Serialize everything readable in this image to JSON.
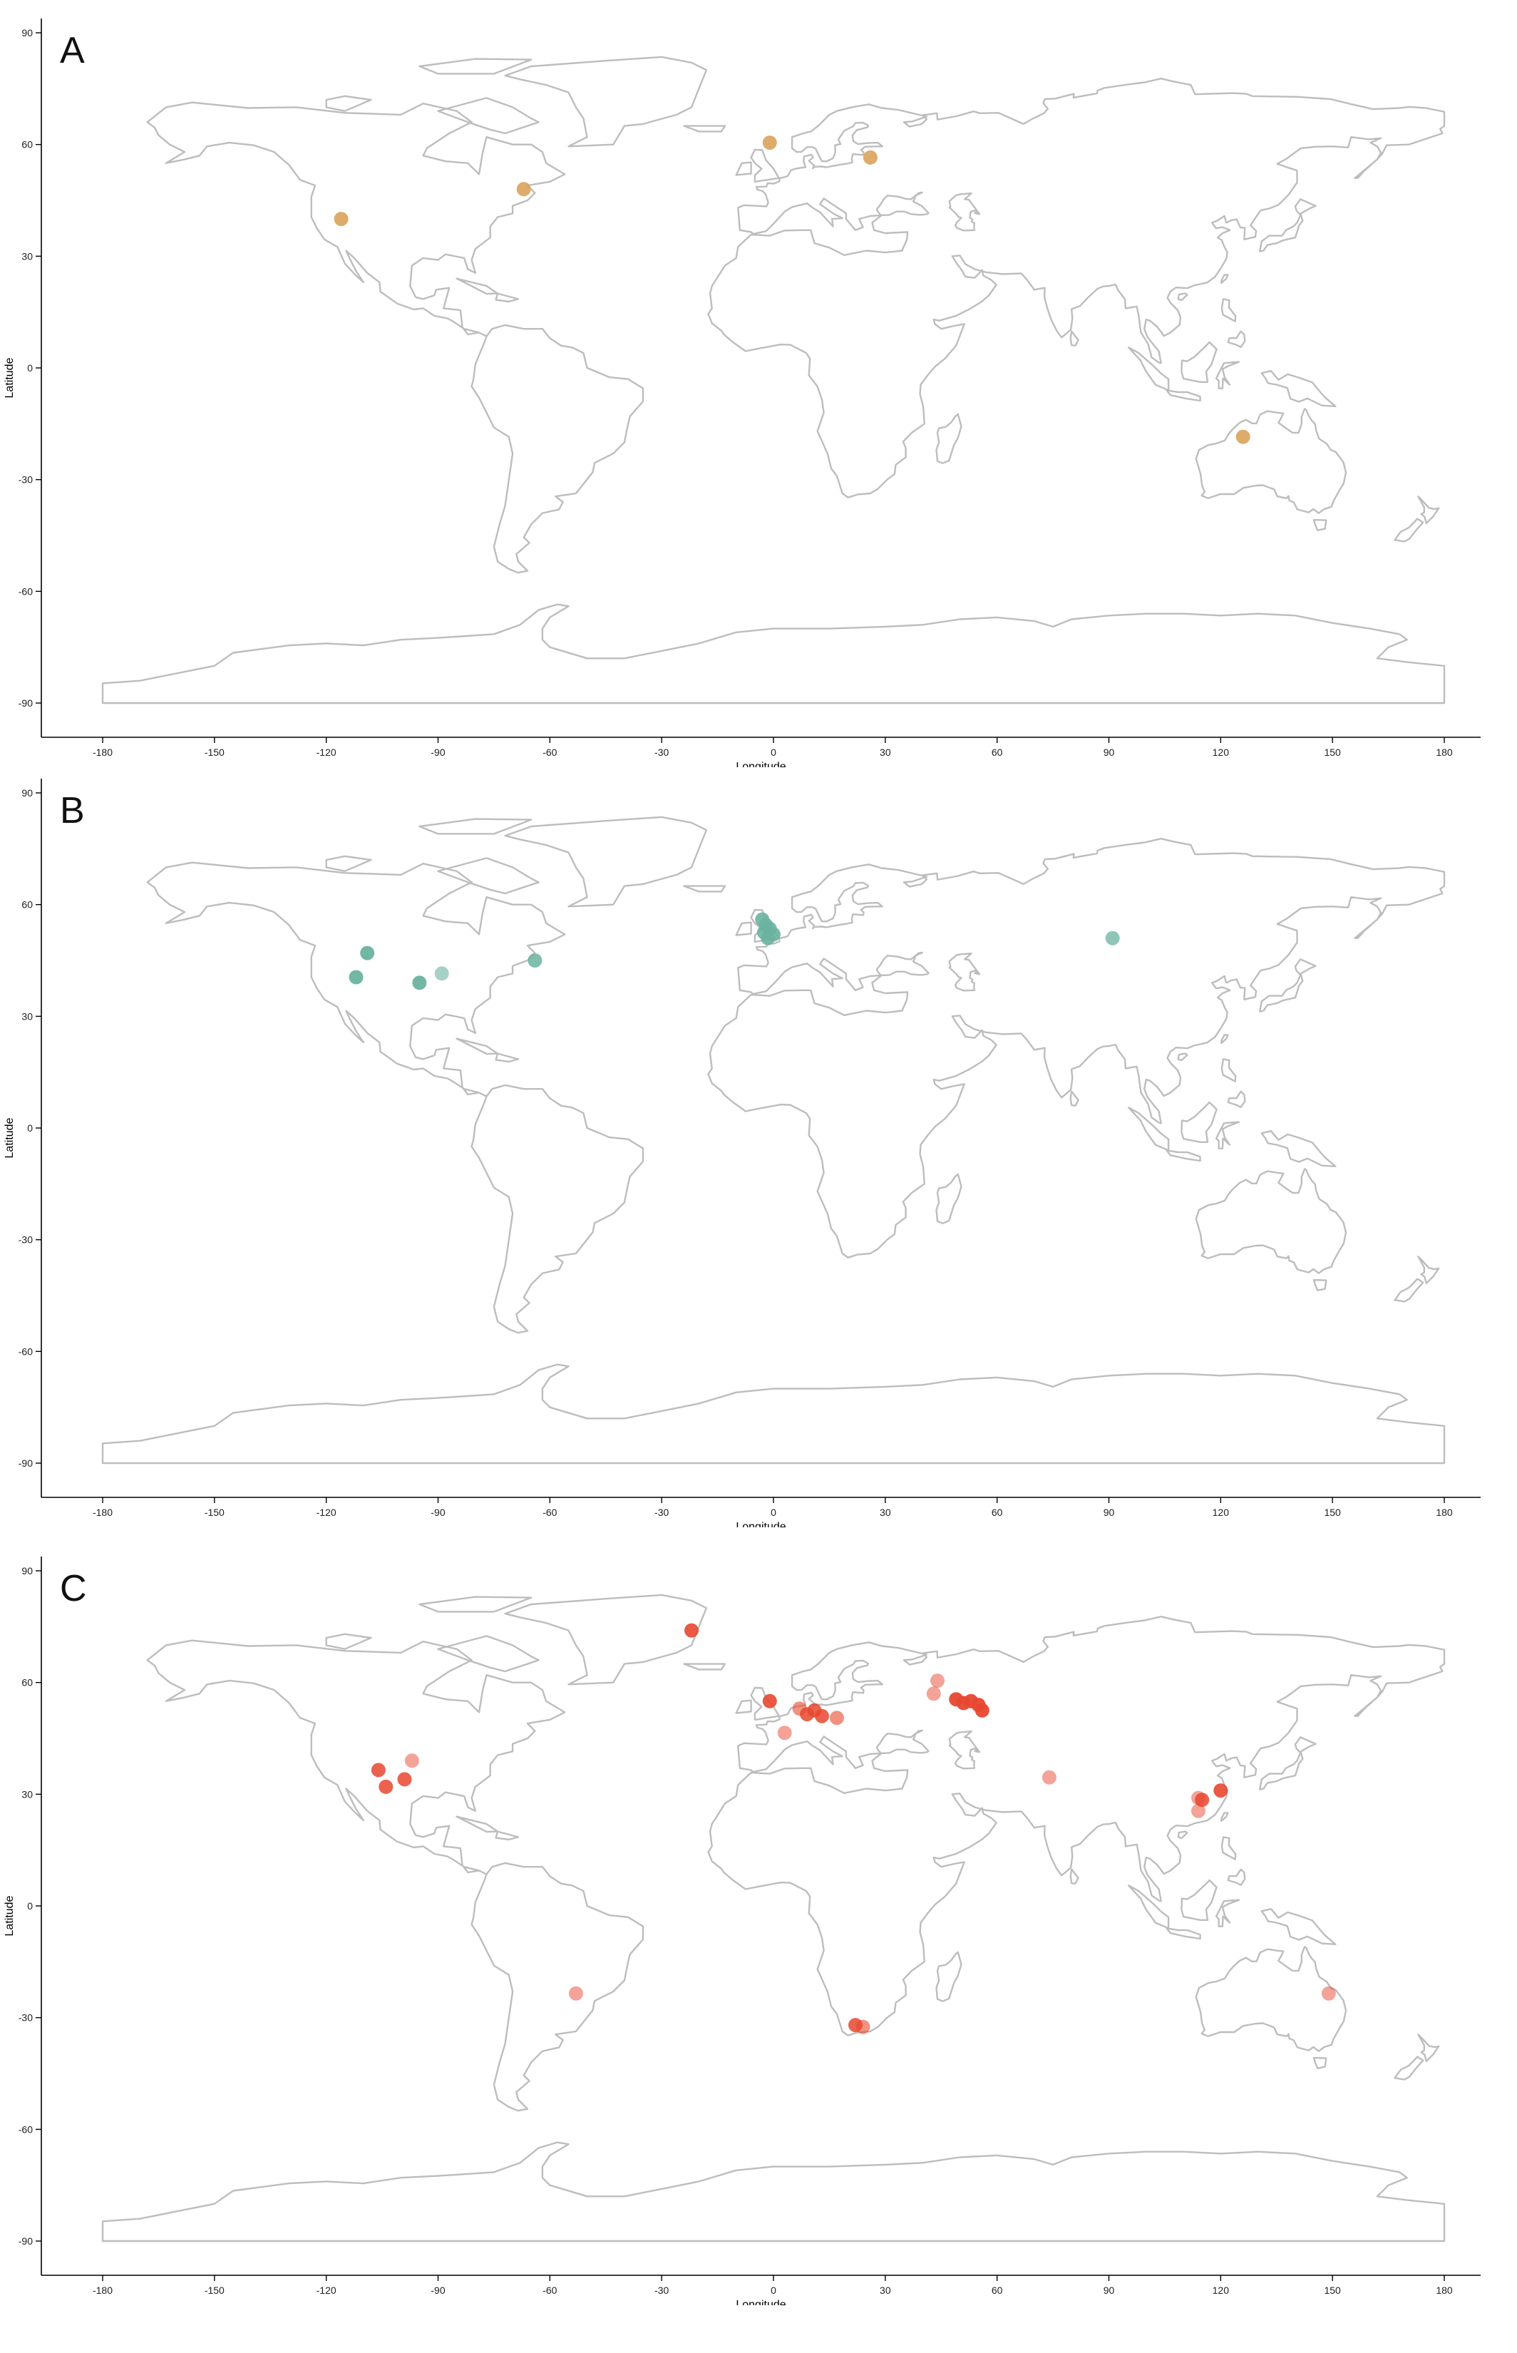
{
  "colors": {
    "A": "#d9a35a",
    "B": "#6ab3a0",
    "C": "#e8472f",
    "land": "#bdbdbd"
  },
  "axes": {
    "xlabel": "Longitude",
    "ylabel": "Latitude",
    "xticks": [
      "-180",
      "-150",
      "-120",
      "-90",
      "-60",
      "-30",
      "0",
      "30",
      "60",
      "90",
      "120",
      "150",
      "180"
    ],
    "yticks": [
      "90",
      "60",
      "30",
      "0",
      "-30",
      "-60",
      "-90"
    ]
  },
  "chart_data": [
    {
      "type": "scatter",
      "panel": "A",
      "xlabel": "Longitude",
      "ylabel": "Latitude",
      "xlim": [
        -180,
        180
      ],
      "ylim": [
        -90,
        90
      ],
      "grid": false,
      "points": [
        {
          "x": -116,
          "y": 40,
          "alpha": 0.9
        },
        {
          "x": -67,
          "y": 48,
          "alpha": 0.9
        },
        {
          "x": -1,
          "y": 60.5,
          "alpha": 0.9
        },
        {
          "x": 26,
          "y": 56.5,
          "alpha": 0.9
        },
        {
          "x": 126,
          "y": -18.5,
          "alpha": 0.9
        }
      ]
    },
    {
      "type": "scatter",
      "panel": "B",
      "xlabel": "Longitude",
      "ylabel": "Latitude",
      "xlim": [
        -180,
        180
      ],
      "ylim": [
        -90,
        90
      ],
      "grid": false,
      "points": [
        {
          "x": -109,
          "y": 47,
          "alpha": 0.95
        },
        {
          "x": -112,
          "y": 40.5,
          "alpha": 0.95
        },
        {
          "x": -95,
          "y": 39,
          "alpha": 0.95
        },
        {
          "x": -89,
          "y": 41.5,
          "alpha": 0.6
        },
        {
          "x": -64,
          "y": 45,
          "alpha": 0.85
        },
        {
          "x": -3,
          "y": 56,
          "alpha": 0.9
        },
        {
          "x": -2,
          "y": 54.5,
          "alpha": 0.9
        },
        {
          "x": -1,
          "y": 53.5,
          "alpha": 0.9
        },
        {
          "x": -2.5,
          "y": 52.5,
          "alpha": 0.9
        },
        {
          "x": 0,
          "y": 52,
          "alpha": 0.9
        },
        {
          "x": -1.5,
          "y": 51,
          "alpha": 0.9
        },
        {
          "x": 91,
          "y": 51,
          "alpha": 0.75
        }
      ]
    },
    {
      "type": "scatter",
      "panel": "C",
      "xlabel": "Longitude",
      "ylabel": "Latitude",
      "xlim": [
        -180,
        180
      ],
      "ylim": [
        -90,
        90
      ],
      "grid": false,
      "points": [
        {
          "x": -106,
          "y": 36.5,
          "alpha": 0.85
        },
        {
          "x": -104,
          "y": 32,
          "alpha": 0.85
        },
        {
          "x": -97,
          "y": 39,
          "alpha": 0.5
        },
        {
          "x": -99,
          "y": 34,
          "alpha": 0.85
        },
        {
          "x": -22,
          "y": 74,
          "alpha": 0.9
        },
        {
          "x": -1,
          "y": 55,
          "alpha": 0.9
        },
        {
          "x": 3,
          "y": 46.5,
          "alpha": 0.5
        },
        {
          "x": 7,
          "y": 53,
          "alpha": 0.6
        },
        {
          "x": 9,
          "y": 51.5,
          "alpha": 0.85
        },
        {
          "x": 11,
          "y": 52.5,
          "alpha": 0.85
        },
        {
          "x": 13,
          "y": 51,
          "alpha": 0.85
        },
        {
          "x": 17,
          "y": 50.5,
          "alpha": 0.6
        },
        {
          "x": 44,
          "y": 60.5,
          "alpha": 0.5
        },
        {
          "x": 43,
          "y": 57,
          "alpha": 0.5
        },
        {
          "x": 49,
          "y": 55.5,
          "alpha": 0.95
        },
        {
          "x": 51,
          "y": 54.5,
          "alpha": 0.95
        },
        {
          "x": 53,
          "y": 55,
          "alpha": 0.95
        },
        {
          "x": 55,
          "y": 54,
          "alpha": 0.95
        },
        {
          "x": 56,
          "y": 52.5,
          "alpha": 0.95
        },
        {
          "x": 74,
          "y": 34.5,
          "alpha": 0.5
        },
        {
          "x": 22,
          "y": -32,
          "alpha": 0.85
        },
        {
          "x": 24,
          "y": -32.5,
          "alpha": 0.6
        },
        {
          "x": -53,
          "y": -23.5,
          "alpha": 0.5
        },
        {
          "x": 114,
          "y": 29,
          "alpha": 0.5
        },
        {
          "x": 115,
          "y": 28.5,
          "alpha": 0.85
        },
        {
          "x": 114,
          "y": 25.5,
          "alpha": 0.5
        },
        {
          "x": 120,
          "y": 31,
          "alpha": 0.9
        },
        {
          "x": 149,
          "y": -23.5,
          "alpha": 0.5
        }
      ]
    }
  ],
  "panels": [
    {
      "label": "A",
      "xlabel": "Longitude",
      "ylabel": "Latitude"
    },
    {
      "label": "B",
      "xlabel": "Longitude",
      "ylabel": "Latitude"
    },
    {
      "label": "C",
      "xlabel": "Longitude",
      "ylabel": "Latitude"
    }
  ]
}
